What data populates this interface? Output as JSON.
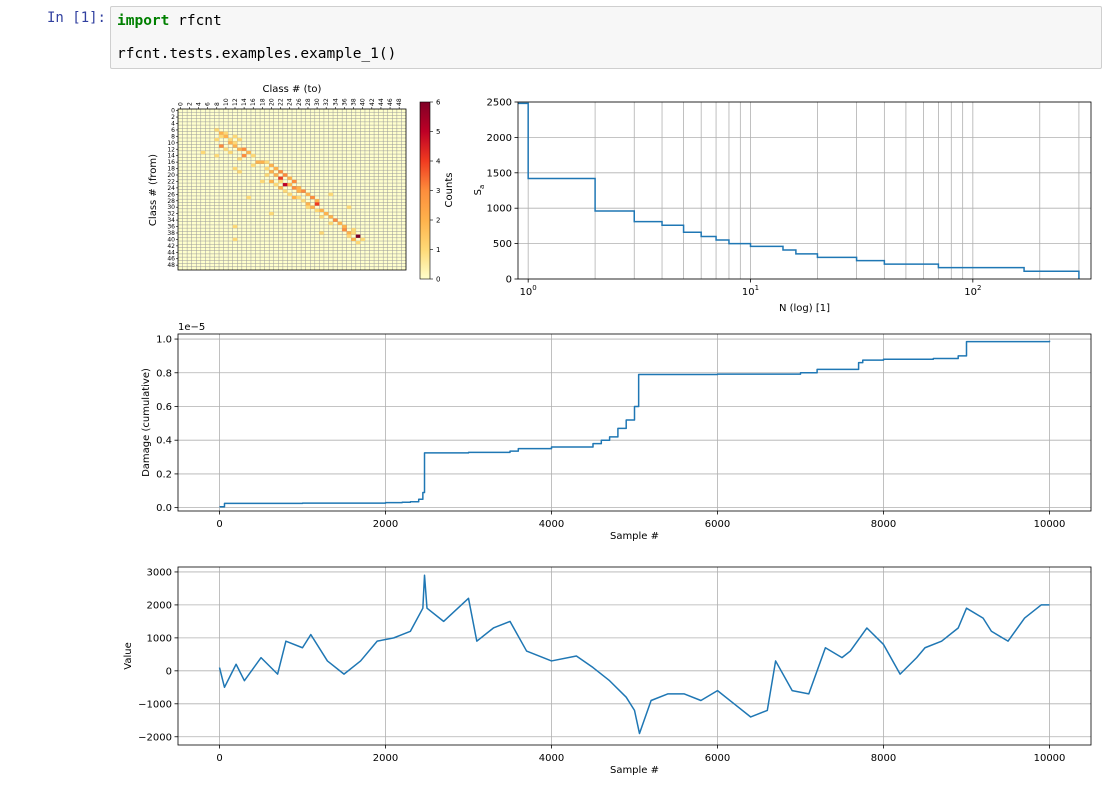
{
  "cell": {
    "prompt": "In [1]:",
    "code_keyword": "import",
    "code_line1_rest": " rfcnt",
    "code_line2": "rfcnt.tests.examples.example_1()"
  },
  "chart_data": [
    {
      "type": "heatmap",
      "title": "Class # (to)",
      "xlabel": "Class # (to)",
      "ylabel": "Class # (from)",
      "colorbar_label": "Counts",
      "colorbar_ticks": [
        "0",
        "1",
        "2",
        "3",
        "4",
        "5",
        "6"
      ],
      "x_ticks": [
        "0",
        "2",
        "4",
        "6",
        "8",
        "10",
        "12",
        "14",
        "16",
        "18",
        "20",
        "22",
        "24",
        "26",
        "28",
        "30",
        "32",
        "34",
        "36",
        "38",
        "40",
        "42",
        "44",
        "46",
        "48"
      ],
      "y_ticks": [
        "0",
        "2",
        "4",
        "6",
        "8",
        "10",
        "12",
        "14",
        "16",
        "18",
        "20",
        "22",
        "24",
        "26",
        "28",
        "30",
        "32",
        "34",
        "36",
        "38",
        "40",
        "42",
        "44",
        "46",
        "48"
      ],
      "n_classes": 50,
      "colormap": "YlOrRd",
      "cells": [
        [
          6,
          8,
          1
        ],
        [
          7,
          9,
          2
        ],
        [
          7,
          10,
          1
        ],
        [
          8,
          9,
          1
        ],
        [
          8,
          10,
          2
        ],
        [
          9,
          8,
          1
        ],
        [
          9,
          11,
          1
        ],
        [
          8,
          12,
          1
        ],
        [
          9,
          13,
          1
        ],
        [
          10,
          11,
          2
        ],
        [
          10,
          12,
          1
        ],
        [
          11,
          9,
          3
        ],
        [
          11,
          12,
          2
        ],
        [
          12,
          10,
          1
        ],
        [
          12,
          13,
          2
        ],
        [
          12,
          14,
          3
        ],
        [
          13,
          11,
          1
        ],
        [
          13,
          15,
          2
        ],
        [
          14,
          8,
          1
        ],
        [
          14,
          14,
          3
        ],
        [
          14,
          16,
          1
        ],
        [
          15,
          13,
          1
        ],
        [
          16,
          18,
          2
        ],
        [
          16,
          19,
          1
        ],
        [
          17,
          16,
          1
        ],
        [
          16,
          17,
          2
        ],
        [
          17,
          20,
          2
        ],
        [
          18,
          19,
          1
        ],
        [
          18,
          21,
          2
        ],
        [
          19,
          20,
          2
        ],
        [
          19,
          22,
          3
        ],
        [
          20,
          19,
          1
        ],
        [
          20,
          21,
          2
        ],
        [
          20,
          23,
          3
        ],
        [
          21,
          22,
          4
        ],
        [
          21,
          24,
          2
        ],
        [
          22,
          20,
          2
        ],
        [
          22,
          22,
          1
        ],
        [
          22,
          25,
          3
        ],
        [
          23,
          21,
          1
        ],
        [
          23,
          23,
          5
        ],
        [
          23,
          24,
          2
        ],
        [
          24,
          22,
          2
        ],
        [
          24,
          25,
          3
        ],
        [
          24,
          26,
          2
        ],
        [
          25,
          23,
          1
        ],
        [
          25,
          26,
          2
        ],
        [
          25,
          27,
          3
        ],
        [
          26,
          24,
          1
        ],
        [
          26,
          28,
          2
        ],
        [
          27,
          25,
          2
        ],
        [
          27,
          26,
          1
        ],
        [
          27,
          29,
          3
        ],
        [
          28,
          27,
          1
        ],
        [
          28,
          30,
          2
        ],
        [
          29,
          28,
          2
        ],
        [
          29,
          30,
          4
        ],
        [
          30,
          28,
          1
        ],
        [
          30,
          29,
          2
        ],
        [
          31,
          30,
          1
        ],
        [
          31,
          31,
          2
        ],
        [
          32,
          32,
          2
        ],
        [
          33,
          31,
          1
        ],
        [
          33,
          33,
          2
        ],
        [
          34,
          34,
          3
        ],
        [
          35,
          33,
          1
        ],
        [
          35,
          35,
          2
        ],
        [
          36,
          36,
          2
        ],
        [
          37,
          36,
          3
        ],
        [
          37,
          38,
          1
        ],
        [
          38,
          37,
          2
        ],
        [
          38,
          38,
          1
        ],
        [
          39,
          39,
          6
        ],
        [
          39,
          37,
          1
        ],
        [
          40,
          38,
          2
        ],
        [
          40,
          40,
          1
        ],
        [
          41,
          39,
          1
        ],
        [
          18,
          12,
          1
        ],
        [
          19,
          13,
          1
        ],
        [
          22,
          18,
          1
        ],
        [
          26,
          33,
          1
        ],
        [
          27,
          15,
          1
        ],
        [
          30,
          37,
          1
        ],
        [
          32,
          20,
          1
        ],
        [
          36,
          12,
          1
        ],
        [
          38,
          31,
          1
        ],
        [
          40,
          12,
          1
        ],
        [
          13,
          5,
          1
        ]
      ]
    },
    {
      "type": "line",
      "xscale": "log",
      "xlabel": "N (log) [1]",
      "ylabel": "Sa",
      "xlim": [
        0.9,
        340
      ],
      "ylim": [
        0,
        2500
      ],
      "y_ticks": [
        "0",
        "500",
        "1000",
        "1500",
        "2000",
        "2500"
      ],
      "x_ticks": [
        "10^0",
        "10^1",
        "10^2"
      ],
      "step": true,
      "x": [
        0.9,
        1,
        2,
        3,
        4,
        5,
        6,
        7,
        8,
        10,
        14,
        16,
        20,
        30,
        40,
        70,
        170,
        300
      ],
      "y": [
        2480,
        1420,
        960,
        810,
        760,
        660,
        600,
        550,
        500,
        460,
        410,
        355,
        305,
        260,
        210,
        160,
        110,
        0
      ]
    },
    {
      "type": "line",
      "xlabel": "Sample #",
      "ylabel": "Damage (cumulative)",
      "y_offset_label": "1e−5",
      "xlim": [
        -500,
        10500
      ],
      "ylim": [
        -0.02,
        1.03
      ],
      "x_ticks": [
        "0",
        "2000",
        "4000",
        "6000",
        "8000",
        "10000"
      ],
      "y_ticks": [
        "0.0",
        "0.2",
        "0.4",
        "0.6",
        "0.8",
        "1.0"
      ],
      "step": true,
      "x": [
        0,
        60,
        1000,
        2000,
        2200,
        2300,
        2400,
        2450,
        2470,
        3000,
        3500,
        3600,
        4000,
        4500,
        4600,
        4700,
        4800,
        4900,
        5000,
        5050,
        5060,
        6000,
        7000,
        7200,
        7700,
        7750,
        8000,
        8600,
        8900,
        9000,
        10000
      ],
      "y": [
        0.005,
        0.025,
        0.027,
        0.03,
        0.032,
        0.035,
        0.05,
        0.09,
        0.325,
        0.328,
        0.335,
        0.35,
        0.36,
        0.38,
        0.4,
        0.42,
        0.47,
        0.52,
        0.6,
        0.79,
        0.79,
        0.792,
        0.8,
        0.82,
        0.86,
        0.875,
        0.88,
        0.885,
        0.9,
        0.985,
        0.99
      ]
    },
    {
      "type": "line",
      "xlabel": "Sample #",
      "ylabel": "Value",
      "xlim": [
        -500,
        10500
      ],
      "ylim": [
        -2250,
        3150
      ],
      "x_ticks": [
        "0",
        "2000",
        "4000",
        "6000",
        "8000",
        "10000"
      ],
      "y_ticks": [
        "−2000",
        "−1000",
        "0",
        "1000",
        "2000",
        "3000"
      ],
      "x": [
        0,
        60,
        200,
        300,
        500,
        700,
        800,
        1000,
        1100,
        1300,
        1500,
        1700,
        1900,
        2100,
        2300,
        2450,
        2470,
        2500,
        2700,
        3000,
        3100,
        3300,
        3500,
        3700,
        4000,
        4300,
        4500,
        4700,
        4900,
        5000,
        5060,
        5200,
        5400,
        5600,
        5800,
        6000,
        6200,
        6400,
        6600,
        6700,
        6900,
        7100,
        7300,
        7500,
        7600,
        7800,
        8000,
        8200,
        8400,
        8500,
        8700,
        8900,
        9000,
        9200,
        9300,
        9500,
        9700,
        9900,
        10000
      ],
      "y": [
        100,
        -500,
        200,
        -300,
        400,
        -100,
        900,
        700,
        1100,
        300,
        -100,
        300,
        900,
        1000,
        1200,
        1900,
        2900,
        1900,
        1500,
        2200,
        900,
        1300,
        1500,
        600,
        300,
        450,
        100,
        -300,
        -800,
        -1200,
        -1900,
        -900,
        -700,
        -700,
        -900,
        -600,
        -1000,
        -1400,
        -1200,
        300,
        -600,
        -700,
        700,
        400,
        600,
        1300,
        800,
        -100,
        400,
        700,
        900,
        1300,
        1900,
        1600,
        1200,
        900,
        1600,
        2000,
        2000
      ]
    }
  ]
}
